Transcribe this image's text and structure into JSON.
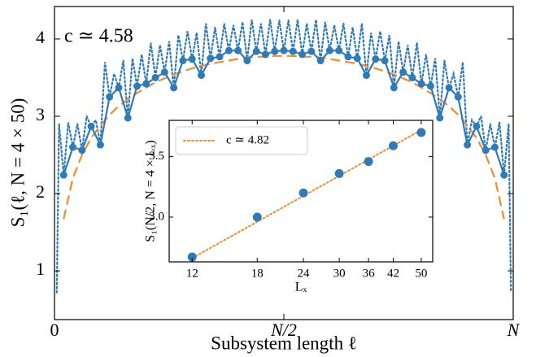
{
  "chart_data": [
    {
      "type": "line",
      "xlabel": "Subsystem length ℓ",
      "ylabel": "S₁(ℓ, N = 4 × 50)",
      "annotation": "c ≃ 4.58",
      "annotation_color": "#f28a30",
      "xlim": [
        0,
        200
      ],
      "ylim": [
        0.37,
        4.42
      ],
      "xticks": [
        0,
        {
          "value": 100,
          "label": "N/2"
        },
        {
          "value": 200,
          "label": "N"
        }
      ],
      "yticks": [
        1,
        2,
        3,
        4
      ],
      "series": [
        {
          "color": "#2f7bb8",
          "linestyle": "dotted",
          "marker": false,
          "x": [
            1,
            2,
            4,
            6,
            8,
            10,
            12,
            14,
            16,
            18,
            20,
            22,
            24,
            26,
            28,
            30,
            32,
            34,
            36,
            38,
            40,
            42,
            44,
            46,
            48,
            50,
            52,
            54,
            56,
            58,
            60,
            62,
            64,
            66,
            68,
            70,
            72,
            74,
            76,
            78,
            80,
            82,
            84,
            86,
            88,
            90,
            92,
            94,
            96,
            98,
            100,
            102,
            104,
            106,
            108,
            110,
            112,
            114,
            116,
            118,
            120,
            122,
            124,
            126,
            128,
            130,
            132,
            134,
            136,
            138,
            140,
            142,
            144,
            146,
            148,
            150,
            152,
            154,
            156,
            158,
            160,
            162,
            164,
            166,
            168,
            170,
            172,
            174,
            176,
            178,
            180,
            182,
            184,
            186,
            188,
            190,
            192,
            194,
            196,
            198,
            199
          ],
          "values": [
            0.72,
            2.9,
            2.24,
            2.92,
            2.6,
            2.9,
            2.56,
            3.0,
            2.87,
            2.95,
            2.63,
            3.7,
            3.25,
            3.55,
            3.37,
            3.72,
            2.98,
            3.75,
            3.39,
            3.8,
            3.42,
            3.95,
            3.5,
            3.92,
            3.57,
            3.97,
            3.37,
            4.05,
            3.72,
            4.1,
            3.74,
            4.08,
            3.53,
            4.2,
            3.75,
            4.15,
            3.77,
            4.2,
            3.85,
            4.18,
            3.85,
            4.22,
            3.72,
            4.25,
            3.84,
            4.2,
            3.8,
            4.25,
            3.84,
            4.24,
            3.85,
            4.24,
            3.84,
            4.25,
            3.8,
            4.2,
            3.84,
            4.25,
            3.72,
            4.22,
            3.85,
            4.18,
            3.85,
            4.2,
            3.77,
            4.15,
            3.75,
            4.2,
            3.53,
            4.08,
            3.74,
            4.1,
            3.72,
            4.05,
            3.37,
            3.97,
            3.57,
            3.92,
            3.5,
            3.95,
            3.42,
            3.8,
            3.39,
            3.75,
            2.98,
            3.72,
            3.37,
            3.55,
            3.25,
            3.7,
            2.63,
            2.95,
            2.87,
            3.0,
            2.56,
            2.9,
            2.6,
            2.92,
            2.24,
            2.9,
            0.72
          ]
        },
        {
          "color": "#f28a30",
          "linestyle": "dashed",
          "marker": false,
          "x": [
            4,
            8,
            12,
            16,
            20,
            24,
            28,
            32,
            36,
            40,
            44,
            48,
            52,
            56,
            60,
            64,
            68,
            72,
            76,
            80,
            84,
            88,
            92,
            96,
            100,
            104,
            108,
            112,
            116,
            120,
            124,
            128,
            132,
            136,
            140,
            144,
            148,
            152,
            156,
            160,
            164,
            168,
            172,
            176,
            180,
            184,
            188,
            192,
            196
          ],
          "values": [
            1.67,
            2.2,
            2.5,
            2.72,
            2.88,
            3.02,
            3.13,
            3.22,
            3.3,
            3.37,
            3.44,
            3.49,
            3.54,
            3.58,
            3.62,
            3.65,
            3.68,
            3.7,
            3.72,
            3.74,
            3.76,
            3.77,
            3.77,
            3.78,
            3.78,
            3.78,
            3.77,
            3.77,
            3.76,
            3.74,
            3.72,
            3.7,
            3.68,
            3.65,
            3.62,
            3.58,
            3.54,
            3.49,
            3.44,
            3.37,
            3.3,
            3.22,
            3.13,
            3.02,
            2.88,
            2.72,
            2.5,
            2.2,
            1.67
          ]
        },
        {
          "color": "#2f7bb8",
          "linestyle": "solid",
          "marker": true,
          "x": [
            4,
            8,
            12,
            16,
            20,
            24,
            28,
            32,
            36,
            40,
            44,
            48,
            52,
            56,
            60,
            64,
            68,
            72,
            76,
            80,
            84,
            88,
            92,
            96,
            100,
            104,
            108,
            112,
            116,
            120,
            124,
            128,
            132,
            136,
            140,
            144,
            148,
            152,
            156,
            160,
            164,
            168,
            172,
            176,
            180,
            184,
            188,
            192,
            196
          ],
          "values": [
            2.24,
            2.6,
            2.56,
            2.87,
            2.63,
            3.25,
            3.37,
            2.98,
            3.39,
            3.42,
            3.5,
            3.57,
            3.37,
            3.72,
            3.74,
            3.53,
            3.75,
            3.77,
            3.85,
            3.85,
            3.72,
            3.84,
            3.8,
            3.84,
            3.85,
            3.84,
            3.8,
            3.84,
            3.72,
            3.85,
            3.85,
            3.77,
            3.75,
            3.53,
            3.74,
            3.72,
            3.37,
            3.57,
            3.5,
            3.42,
            3.39,
            2.98,
            3.37,
            3.25,
            2.63,
            2.87,
            2.56,
            2.6,
            2.24
          ]
        }
      ]
    },
    {
      "type": "line",
      "xlabel": "Lₓ",
      "ylabel": "S₁(N/2, N = 4 × Lₓ)",
      "xscale": "log",
      "xlim": [
        10.4,
        53.7
      ],
      "ylim": [
        2.63,
        3.8
      ],
      "xticks": [
        12,
        18,
        24,
        30,
        36,
        42,
        50
      ],
      "yticks": [
        {
          "value": 3,
          "label": "3.0"
        },
        {
          "value": 3.5,
          "label": "3.5"
        }
      ],
      "legend": "upper left",
      "series": [
        {
          "name": "c ≃ 4.82",
          "color": "#f28a30",
          "linestyle": "dotted",
          "marker": false,
          "x": [
            12,
            50
          ],
          "values": [
            2.66,
            3.72
          ]
        },
        {
          "color": "#2f7bb8",
          "linestyle": "none",
          "marker": true,
          "x": [
            12,
            18,
            24,
            30,
            36,
            42,
            50
          ],
          "values": [
            2.67,
            3.0,
            3.2,
            3.36,
            3.46,
            3.59,
            3.7
          ]
        }
      ]
    }
  ]
}
